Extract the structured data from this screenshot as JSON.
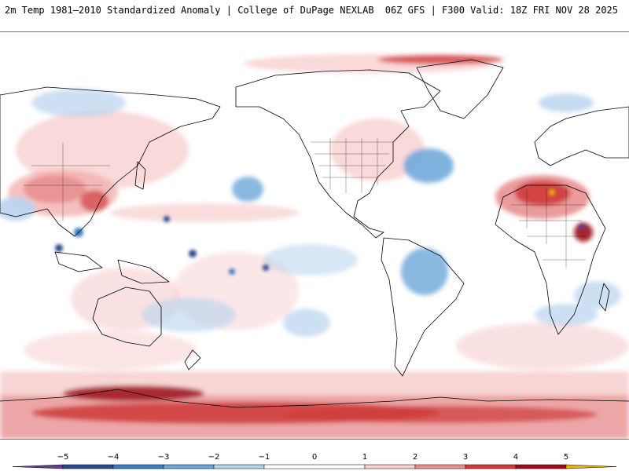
{
  "header": {
    "title_left": "2m Temp 1981–2010 Standardized Anomaly | College of DuPage NEXLAB",
    "title_right": "06Z GFS | F300 Valid: 18Z FRI NOV 28 2025"
  },
  "colorbar": {
    "ticks": [
      "−5",
      "−4",
      "−3",
      "−2",
      "−1",
      "0",
      "1",
      "2",
      "3",
      "4",
      "5"
    ],
    "colors": {
      "lt_-5": "#6a3a9a",
      "-5_-4": "#2a4a8c",
      "-4_-3": "#3b7dc4",
      "-3_-2": "#6aa6da",
      "-2_-1": "#b8d3ee",
      "-1_1": "#ffffff",
      "1_2": "#f7cfcf",
      "2_3": "#e89090",
      "3_4": "#cf3a3a",
      "4_5": "#9c0f1a",
      "gt_5": "#f0b400"
    }
  },
  "map": {
    "projection": "equirectangular, Pacific-centered",
    "features": [
      "coastlines",
      "country-borders",
      "us-state-borders"
    ]
  }
}
